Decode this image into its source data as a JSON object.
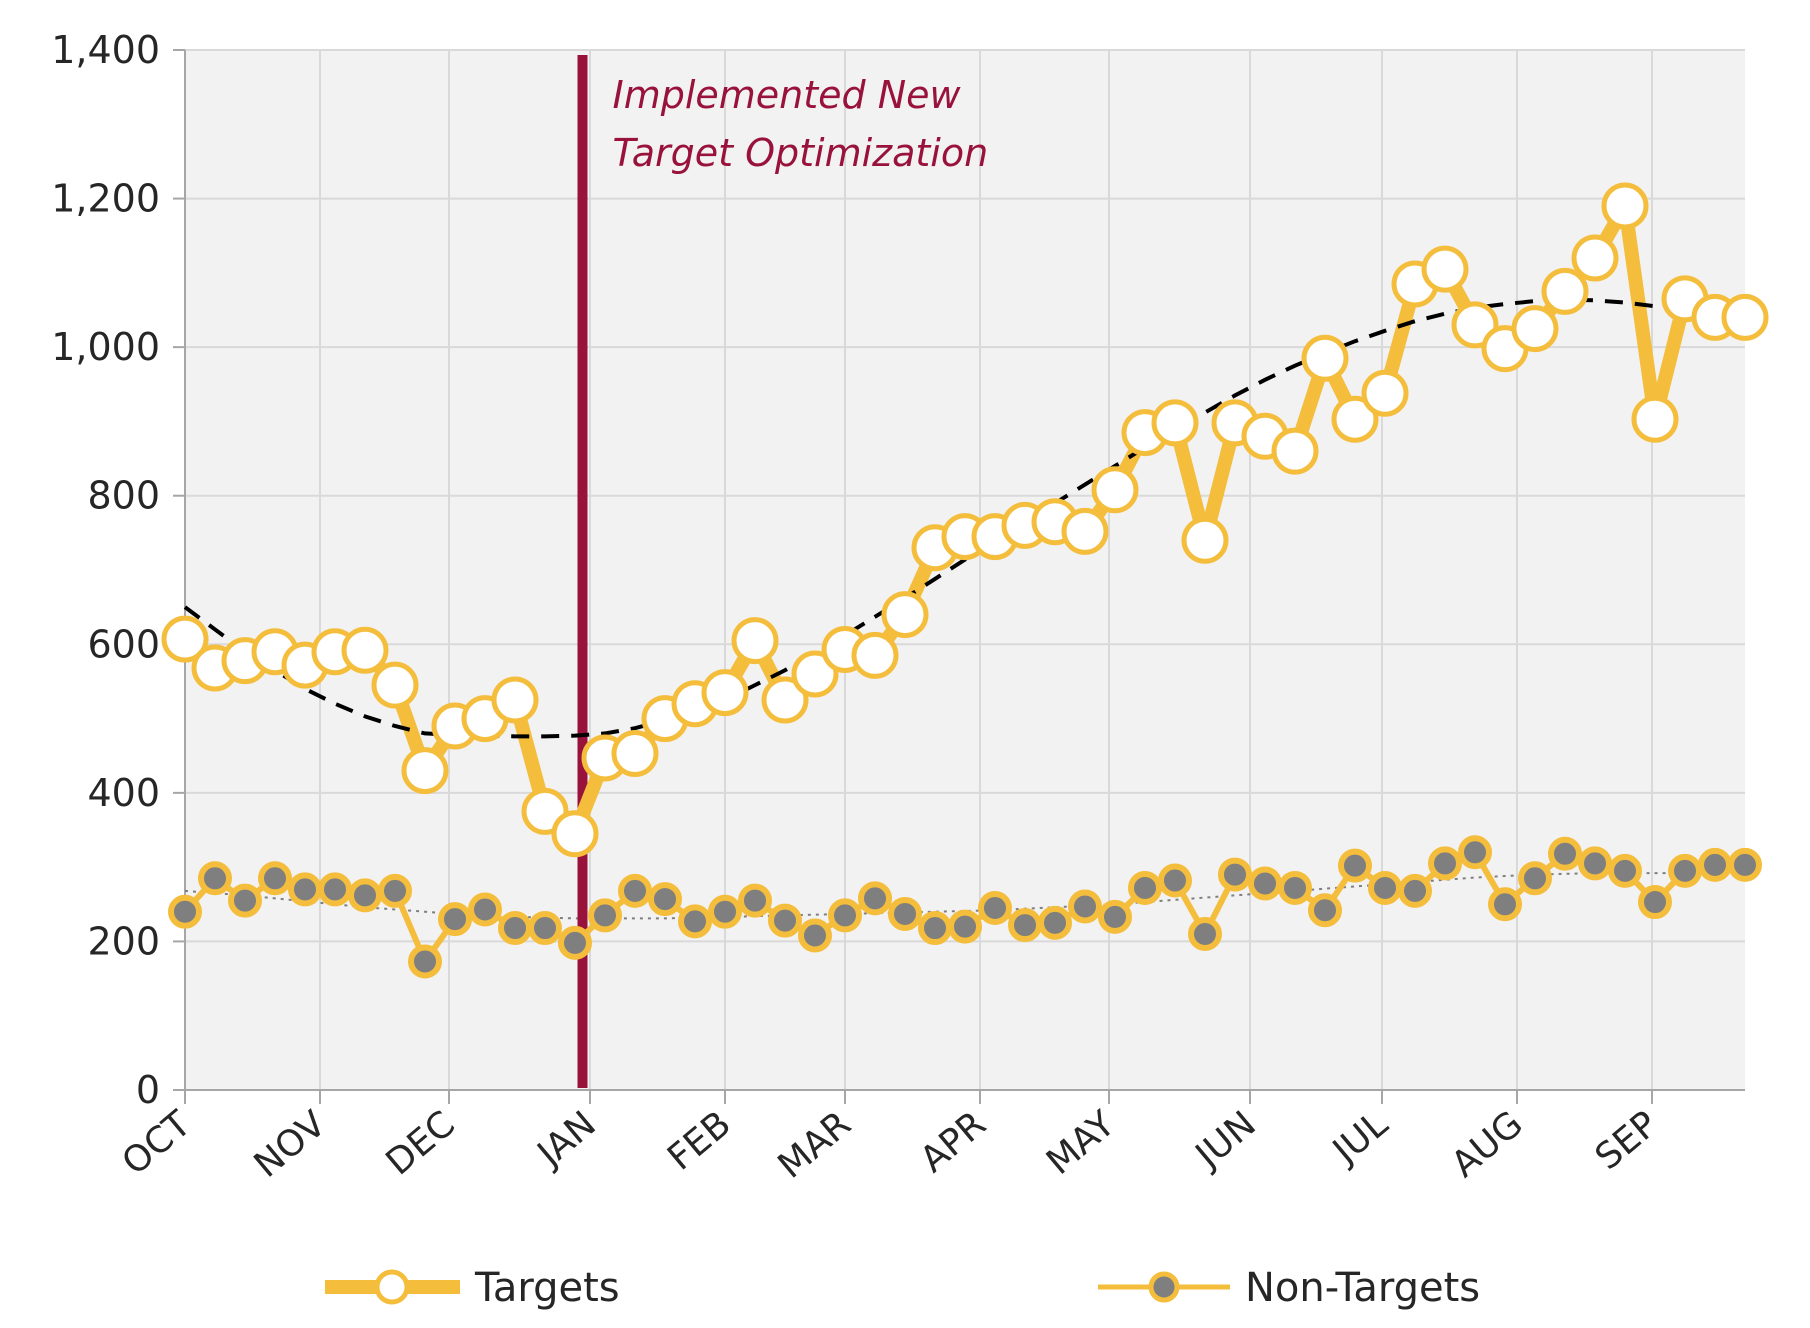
{
  "colors": {
    "series_line": "#F4BD3C",
    "target_marker_fill": "#FFFFFF",
    "nontarget_marker_fill": "#7F7F7F",
    "annotation": "#99123B",
    "plot_background": "#F2F2F2",
    "gridline": "#D9D9D9",
    "trend_target": "#000000",
    "trend_nontarget": "#7F7F7F"
  },
  "annotation": {
    "line1": "Implemented New",
    "line2": "Target Optimization",
    "x": 13.25
  },
  "legend": {
    "targets_label": "Targets",
    "nontargets_label": "Non-Targets"
  },
  "chart_data": {
    "type": "line",
    "title": "",
    "xlabel": "",
    "ylabel": "",
    "ylim": [
      0,
      1400
    ],
    "xlim": [
      0,
      52
    ],
    "yticks": [
      0,
      200,
      400,
      600,
      800,
      1000,
      1200,
      1400
    ],
    "ytick_labels": [
      "0",
      "200",
      "400",
      "600",
      "800",
      "1,000",
      "1,200",
      "1,400"
    ],
    "month_labels": [
      "OCT",
      "NOV",
      "DEC",
      "JAN",
      "FEB",
      "MAR",
      "APR",
      "MAY",
      "JUN",
      "JUL",
      "AUG",
      "SEP"
    ],
    "month_positions": [
      0,
      4.5,
      8.8,
      13.5,
      18,
      22,
      26.5,
      30.8,
      35.5,
      39.9,
      44.4,
      48.9
    ],
    "grid": true,
    "legend_position": "bottom",
    "series": [
      {
        "name": "Targets",
        "x": [
          0,
          1,
          2,
          3,
          4,
          5,
          6,
          7,
          8,
          9,
          10,
          11,
          12,
          13,
          14,
          15,
          16,
          17,
          18,
          19,
          20,
          21,
          22,
          23,
          24,
          25,
          26,
          27,
          28,
          29,
          30,
          31,
          32,
          33,
          34,
          35,
          36,
          37,
          38,
          39,
          40,
          41,
          42,
          43,
          44,
          45,
          46,
          47,
          48,
          49,
          50,
          51,
          52
        ],
        "values": [
          607,
          568,
          578,
          590,
          572,
          590,
          592,
          545,
          430,
          490,
          500,
          525,
          375,
          345,
          447,
          453,
          500,
          520,
          535,
          605,
          525,
          560,
          593,
          585,
          640,
          730,
          745,
          745,
          760,
          765,
          752,
          808,
          885,
          898,
          740,
          898,
          880,
          860,
          985,
          903,
          938,
          1085,
          1105,
          1030,
          998,
          1025,
          1075,
          1120,
          1190,
          903,
          1065,
          1040,
          1040
        ],
        "trend": [
          650,
          620,
          590,
          565,
          540,
          520,
          503,
          490,
          480,
          478,
          477,
          476,
          476,
          477,
          480,
          487,
          498,
          510,
          525,
          545,
          565,
          588,
          612,
          637,
          662,
          688,
          714,
          740,
          765,
          790,
          815,
          840,
          865,
          888,
          912,
          935,
          956,
          975,
          992,
          1008,
          1022,
          1035,
          1045,
          1053,
          1058,
          1062,
          1064,
          1063,
          1060,
          1055,
          1050,
          1043,
          1043
        ]
      },
      {
        "name": "Non-Targets",
        "x": [
          0,
          1,
          2,
          3,
          4,
          5,
          6,
          7,
          8,
          9,
          10,
          11,
          12,
          13,
          14,
          15,
          16,
          17,
          18,
          19,
          20,
          21,
          22,
          23,
          24,
          25,
          26,
          27,
          28,
          29,
          30,
          31,
          32,
          33,
          34,
          35,
          36,
          37,
          38,
          39,
          40,
          41,
          42,
          43,
          44,
          45,
          46,
          47,
          48,
          49,
          50,
          51,
          52
        ],
        "values": [
          240,
          285,
          255,
          285,
          270,
          270,
          262,
          268,
          173,
          230,
          243,
          218,
          218,
          198,
          235,
          268,
          257,
          227,
          240,
          255,
          228,
          208,
          235,
          258,
          237,
          218,
          220,
          245,
          222,
          225,
          247,
          233,
          272,
          282,
          210,
          290,
          278,
          272,
          242,
          302,
          272,
          268,
          305,
          320,
          250,
          285,
          318,
          305,
          295,
          253,
          295,
          303,
          303
        ],
        "trend": [
          268,
          265,
          262,
          258,
          254,
          250,
          246,
          243,
          240,
          237,
          235,
          233,
          232,
          231,
          231,
          231,
          231,
          232,
          233,
          234,
          235,
          236,
          237,
          238,
          239,
          240,
          241,
          242,
          244,
          246,
          248,
          250,
          253,
          256,
          259,
          262,
          265,
          268,
          271,
          274,
          277,
          280,
          283,
          286,
          288,
          290,
          291,
          292,
          292,
          292,
          292,
          292,
          292
        ]
      }
    ]
  }
}
